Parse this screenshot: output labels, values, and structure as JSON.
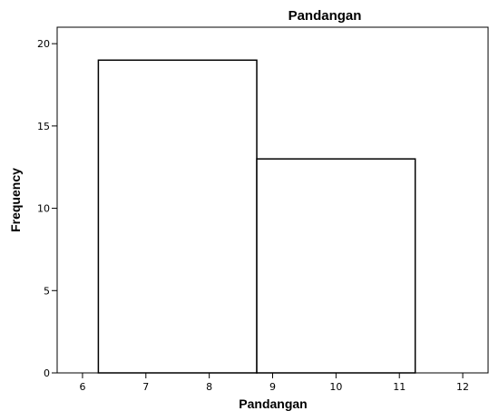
{
  "chart_data": {
    "type": "bar",
    "title": "Pandangan",
    "xlabel": "Pandangan",
    "ylabel": "Frequency",
    "bins": [
      {
        "start": 6.25,
        "end": 8.75,
        "count": 19
      },
      {
        "start": 8.75,
        "end": 11.25,
        "count": 13
      }
    ],
    "xlim": [
      5.6,
      12.4
    ],
    "ylim": [
      0,
      21
    ],
    "xticks": [
      6,
      7,
      8,
      9,
      10,
      11,
      12
    ],
    "yticks": [
      0,
      5,
      10,
      15,
      20
    ],
    "grid": false,
    "bar_fill": "#ffffff",
    "bar_stroke": "#000000",
    "background": "#ffffff"
  }
}
